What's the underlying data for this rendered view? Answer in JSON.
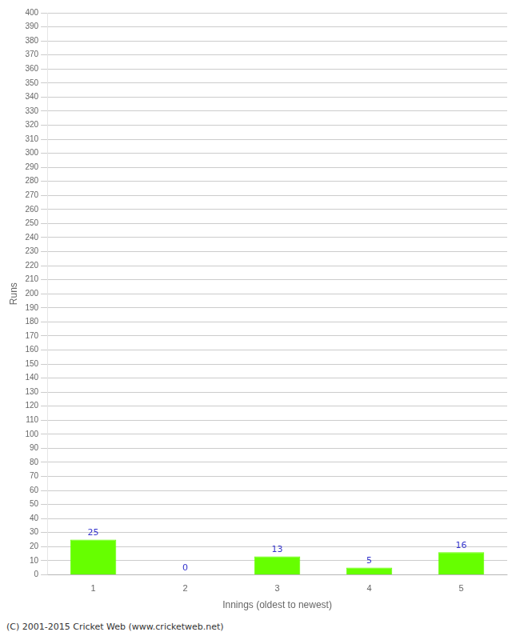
{
  "chart_data": {
    "type": "bar",
    "xlabel": "Innings (oldest to newest)",
    "ylabel": "Runs",
    "categories": [
      1,
      2,
      3,
      4,
      5
    ],
    "values": [
      25,
      0,
      13,
      5,
      16
    ],
    "color": "#66ff00",
    "ylim": [
      0,
      400
    ],
    "yticks": [
      0,
      10,
      20,
      30,
      40,
      50,
      60,
      70,
      80,
      90,
      100,
      110,
      120,
      130,
      140,
      150,
      160,
      170,
      180,
      190,
      200,
      210,
      220,
      230,
      240,
      250,
      260,
      270,
      280,
      290,
      300,
      310,
      320,
      330,
      340,
      350,
      360,
      370,
      380,
      390,
      400
    ],
    "grid": true,
    "data_labels": true,
    "footer": "(C) 2001-2015 Cricket Web (www.cricketweb.net)"
  }
}
